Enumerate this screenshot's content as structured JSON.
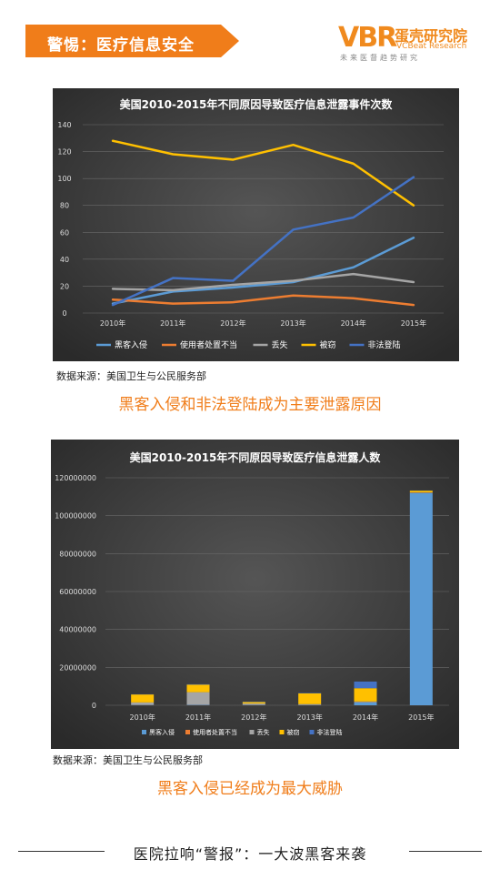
{
  "header": {
    "banner_text": "警惕：医疗信息安全",
    "logo_mark": "VBR",
    "logo_name": "蛋壳研究院",
    "logo_en": "VCBeat Research",
    "logo_slogan": "未来医督趋势研究",
    "accent_color": "#f07d1a"
  },
  "chart_data": [
    {
      "type": "line",
      "title": "美国2010-2015年不同原因导致医疗信息泄露事件次数",
      "categories": [
        "2010年",
        "2011年",
        "2012年",
        "2013年",
        "2014年",
        "2015年"
      ],
      "ylim": [
        0,
        140
      ],
      "yticks": [
        "0",
        "20",
        "40",
        "60",
        "80",
        "100",
        "120",
        "140"
      ],
      "grid": true,
      "legend_position": "bottom",
      "series": [
        {
          "name": "黑客入侵",
          "color": "#5b9bd5",
          "values": [
            7,
            16,
            19,
            23,
            34,
            56
          ]
        },
        {
          "name": "使用者处置不当",
          "color": "#ed7d31",
          "values": [
            10,
            7,
            8,
            13,
            11,
            6
          ]
        },
        {
          "name": "丢失",
          "color": "#a5a5a5",
          "values": [
            18,
            17,
            21,
            24,
            29,
            23
          ]
        },
        {
          "name": "被窃",
          "color": "#ffc000",
          "values": [
            128,
            118,
            114,
            125,
            111,
            80
          ]
        },
        {
          "name": "非法登陆",
          "color": "#4472c4",
          "values": [
            6,
            26,
            24,
            62,
            71,
            101
          ]
        }
      ]
    },
    {
      "type": "bar",
      "stacked": true,
      "title": "美国2010-2015年不同原因导致医疗信息泄露人数",
      "categories": [
        "2010年",
        "2011年",
        "2012年",
        "2013年",
        "2014年",
        "2015年"
      ],
      "ylim": [
        0,
        120000000
      ],
      "yticks": [
        "0",
        "20000000",
        "40000000",
        "60000000",
        "80000000",
        "100000000",
        "120000000"
      ],
      "grid": true,
      "legend_position": "bottom",
      "series": [
        {
          "name": "黑客入侵",
          "color": "#5b9bd5",
          "values": [
            200000,
            300000,
            200000,
            200000,
            1500000,
            112000000
          ]
        },
        {
          "name": "使用者处置不当",
          "color": "#ed7d31",
          "values": [
            100000,
            100000,
            100000,
            100000,
            100000,
            200000
          ]
        },
        {
          "name": "丢失",
          "color": "#a5a5a5",
          "values": [
            1200000,
            6500000,
            600000,
            300000,
            400000,
            100000
          ]
        },
        {
          "name": "被窃",
          "color": "#ffc000",
          "values": [
            4200000,
            4000000,
            800000,
            5700000,
            7000000,
            900000
          ]
        },
        {
          "name": "非法登陆",
          "color": "#4472c4",
          "values": [
            100000,
            200000,
            200000,
            200000,
            3500000,
            100000
          ]
        }
      ]
    }
  ],
  "source1": "数据来源：美国卫生与公民服务部",
  "caption1": "黑客入侵和非法登陆成为主要泄露原因",
  "source2": "数据来源：美国卫生与公民服务部",
  "caption2": "黑客入侵已经成为最大威胁",
  "footer": "医院拉响“警报”：一大波黑客来袭"
}
